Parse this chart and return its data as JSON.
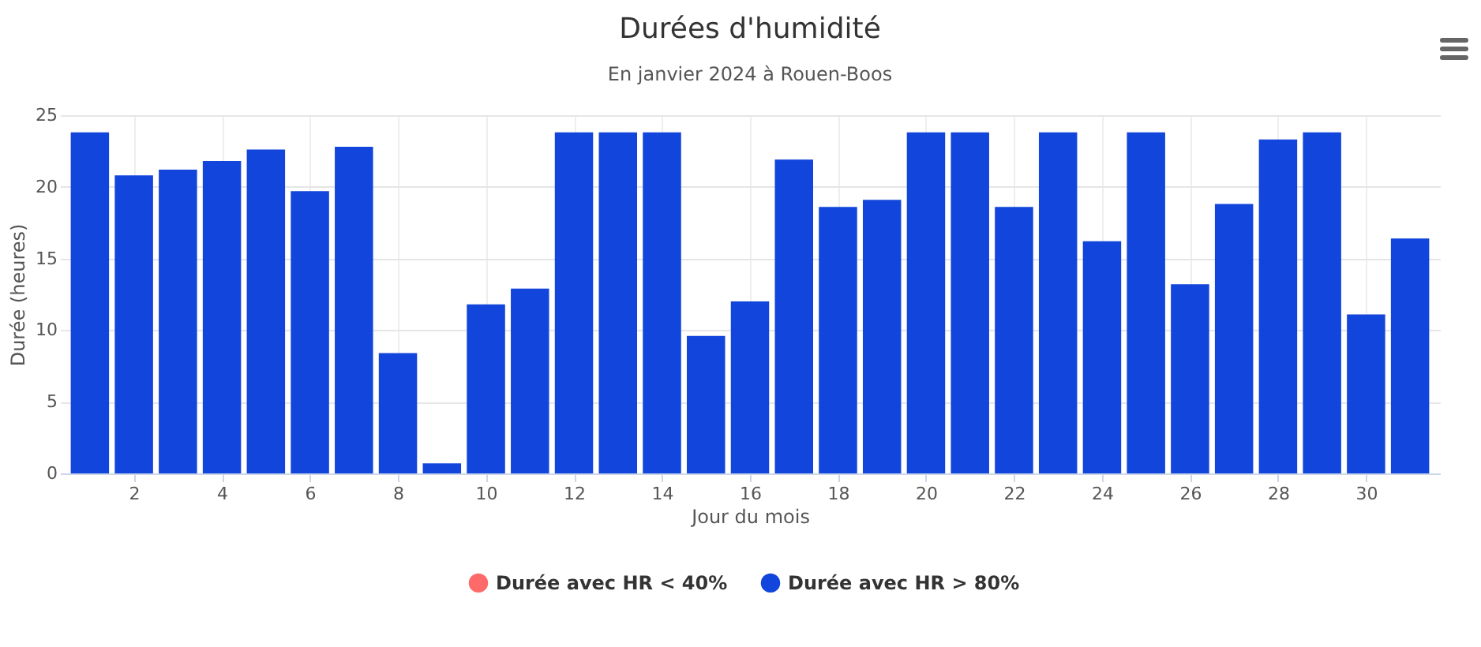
{
  "chart_data": {
    "type": "bar",
    "title": "Durées d'humidité",
    "subtitle": "En janvier 2024 à Rouen-Boos",
    "xlabel": "Jour du mois",
    "ylabel": "Durée (heures)",
    "x": [
      1,
      2,
      3,
      4,
      5,
      6,
      7,
      8,
      9,
      10,
      11,
      12,
      13,
      14,
      15,
      16,
      17,
      18,
      19,
      20,
      21,
      22,
      23,
      24,
      25,
      26,
      27,
      28,
      29,
      30,
      31
    ],
    "series": [
      {
        "name": "Durée avec HR < 40%",
        "color": "#fe6a6a",
        "values": [
          0,
          0,
          0,
          0,
          0,
          0,
          0,
          0,
          0,
          0,
          0,
          0,
          0,
          0,
          0,
          0,
          0,
          0,
          0,
          0,
          0,
          0,
          0,
          0,
          0,
          0,
          0,
          0,
          0,
          0,
          0
        ]
      },
      {
        "name": "Durée avec HR > 80%",
        "color": "#1245db",
        "values": [
          23.8,
          20.8,
          21.2,
          21.8,
          22.6,
          19.7,
          22.8,
          8.4,
          0.7,
          11.8,
          12.9,
          23.8,
          23.8,
          23.8,
          9.6,
          12.0,
          21.9,
          18.6,
          19.1,
          23.8,
          23.8,
          18.6,
          23.8,
          16.2,
          23.8,
          13.2,
          18.8,
          23.3,
          23.8,
          11.1,
          16.4
        ]
      }
    ],
    "xlim": [
      0.5,
      31.5
    ],
    "xticks": [
      2,
      4,
      6,
      8,
      10,
      12,
      14,
      16,
      18,
      20,
      22,
      24,
      26,
      28,
      30
    ],
    "ylim": [
      0,
      25
    ],
    "yticks": [
      0,
      5,
      10,
      15,
      20,
      25
    ],
    "grid": true,
    "legend": "bottom"
  }
}
